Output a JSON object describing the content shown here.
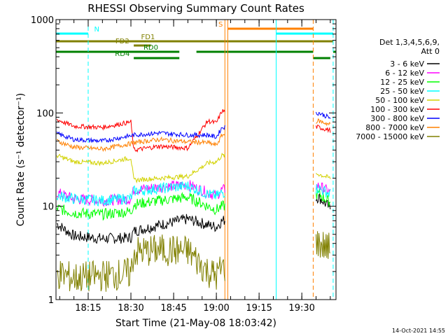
{
  "chart_data": {
    "type": "line",
    "title": "RHESSI Observing Summary Count Rates",
    "xlabel": "Start Time (21-May-08 18:03:42)",
    "ylabel": "Count Rate (s⁻¹ detector⁻¹)",
    "y_scale": "log",
    "ylim": [
      1,
      1000
    ],
    "xlim": [
      "18:03:42",
      "19:42:00"
    ],
    "x_ticks": [
      "18:15",
      "18:30",
      "18:45",
      "19:00",
      "19:15",
      "19:30"
    ],
    "y_ticks": [
      "1",
      "10",
      "100",
      "1000"
    ],
    "grid": false,
    "legend_position": "right",
    "legend_header": [
      "Det 1,3,4,5,6,9,",
      "Att 0"
    ],
    "footer": "14-Oct-2021 14:55",
    "series": [
      {
        "name": "3 - 6 keV",
        "color": "#000000",
        "x": [
          "18:04",
          "18:10",
          "18:20",
          "18:30",
          "18:31",
          "18:40",
          "18:50",
          "18:57",
          "19:00",
          "19:02",
          "19:36",
          "19:40"
        ],
        "y": [
          6.5,
          4.8,
          4.5,
          4.6,
          5.4,
          6.3,
          7.3,
          6.3,
          6.0,
          7.0,
          12.5,
          9.5
        ]
      },
      {
        "name": "6 - 12 keV",
        "color": "#ff00ff",
        "x": [
          "18:04",
          "18:10",
          "18:20",
          "18:30",
          "18:31",
          "18:40",
          "18:50",
          "18:57",
          "19:00",
          "19:02",
          "19:36",
          "19:40"
        ],
        "y": [
          14,
          12,
          11.5,
          12,
          15,
          16,
          17,
          14,
          13,
          15,
          16.5,
          14
        ]
      },
      {
        "name": "12 - 25 keV",
        "color": "#00ff00",
        "x": [
          "18:04",
          "18:10",
          "18:20",
          "18:30",
          "18:31",
          "18:40",
          "18:50",
          "18:57",
          "19:00",
          "19:02",
          "19:36",
          "19:40"
        ],
        "y": [
          9.5,
          8.5,
          8.2,
          8.8,
          10.5,
          11.5,
          12.5,
          10,
          9.2,
          10,
          13.5,
          11
        ]
      },
      {
        "name": "25 - 50 keV",
        "color": "#00ffff",
        "x": [
          "18:04",
          "18:10",
          "18:20",
          "18:30",
          "18:31",
          "18:40",
          "18:50",
          "18:57",
          "19:00",
          "19:02",
          "19:36",
          "19:40"
        ],
        "y": [
          13,
          12,
          11.5,
          12.2,
          14.5,
          15.5,
          16.5,
          13.5,
          12.8,
          14,
          15.5,
          13.5
        ]
      },
      {
        "name": "50 - 100 keV",
        "color": "#d2d200",
        "x": [
          "18:04",
          "18:10",
          "18:20",
          "18:30",
          "18:31",
          "18:40",
          "18:50",
          "18:57",
          "19:00",
          "19:02",
          "19:36",
          "19:40"
        ],
        "y": [
          35,
          30,
          29,
          33,
          19,
          20,
          21,
          29,
          30,
          35,
          22,
          20
        ]
      },
      {
        "name": "100 - 300 keV",
        "color": "#ff0000",
        "x": [
          "18:04",
          "18:10",
          "18:20",
          "18:30",
          "18:31",
          "18:40",
          "18:50",
          "18:57",
          "19:00",
          "19:02",
          "19:36",
          "19:40"
        ],
        "y": [
          85,
          72,
          70,
          80,
          40,
          44,
          42,
          82,
          78,
          105,
          70,
          65
        ]
      },
      {
        "name": "300 - 800 keV",
        "color": "#0000ff",
        "x": [
          "18:04",
          "18:10",
          "18:20",
          "18:30",
          "18:31",
          "18:40",
          "18:50",
          "18:57",
          "19:00",
          "19:02",
          "19:36",
          "19:40"
        ],
        "y": [
          60,
          52,
          50,
          57,
          58,
          61,
          58,
          58,
          55,
          70,
          100,
          88
        ]
      },
      {
        "name": "800 - 7000 keV",
        "color": "#ff8000",
        "x": [
          "18:04",
          "18:10",
          "18:20",
          "18:30",
          "18:31",
          "18:40",
          "18:50",
          "18:57",
          "19:00",
          "19:02",
          "19:36",
          "19:40"
        ],
        "y": [
          50,
          43,
          41,
          47,
          48,
          52,
          49,
          48,
          45,
          58,
          82,
          75
        ]
      },
      {
        "name": "7000 - 15000 keV",
        "color": "#808000",
        "x": [
          "18:04",
          "18:10",
          "18:20",
          "18:30",
          "18:31",
          "18:40",
          "18:50",
          "18:57",
          "19:00",
          "19:02",
          "19:36",
          "19:40"
        ],
        "y": [
          1.9,
          1.7,
          1.8,
          1.9,
          3.2,
          3.4,
          3.3,
          2.0,
          1.8,
          2.2,
          4.0,
          3.5
        ]
      }
    ],
    "flags": [
      {
        "label": "N",
        "color": "#00ffff",
        "row": 1,
        "segments": [
          [
            "18:03:42",
            "18:15"
          ],
          [
            "19:21",
            "19:41"
          ]
        ]
      },
      {
        "label": "S",
        "color": "#ff8000",
        "row": 2,
        "segments": [
          [
            "19:04",
            "19:34"
          ]
        ]
      },
      {
        "label": "FD1",
        "color": "#808000",
        "row": 3,
        "segments": [
          [
            "18:03:42",
            "19:41"
          ]
        ]
      },
      {
        "label": "FD2",
        "color": "#808000",
        "row": 4,
        "segments": [
          [
            "18:31",
            "18:37"
          ]
        ]
      },
      {
        "label": "RD0",
        "color": "#008000",
        "row": 5,
        "segments": [
          [
            "18:03:42",
            "18:47"
          ],
          [
            "18:53",
            "19:34"
          ],
          [
            "19:41",
            "19:42"
          ]
        ]
      },
      {
        "label": "RD4",
        "color": "#008000",
        "row": 6,
        "segments": [
          [
            "18:31",
            "18:47"
          ],
          [
            "19:34",
            "19:40"
          ]
        ]
      }
    ],
    "vlines": [
      {
        "x": "18:03:42",
        "color": "#00ffff",
        "dash": false
      },
      {
        "x": "18:15",
        "color": "#00ffff",
        "dash": true
      },
      {
        "x": "19:03",
        "color": "#ff8000",
        "dash": false
      },
      {
        "x": "19:04",
        "color": "#ff8000",
        "dash": false
      },
      {
        "x": "19:21",
        "color": "#00ffff",
        "dash": false
      },
      {
        "x": "19:34",
        "color": "#ff8000",
        "dash": true
      },
      {
        "x": "19:41",
        "color": "#00ffff",
        "dash": true
      }
    ],
    "data_gaps": [
      [
        "19:03",
        "19:35"
      ]
    ]
  }
}
